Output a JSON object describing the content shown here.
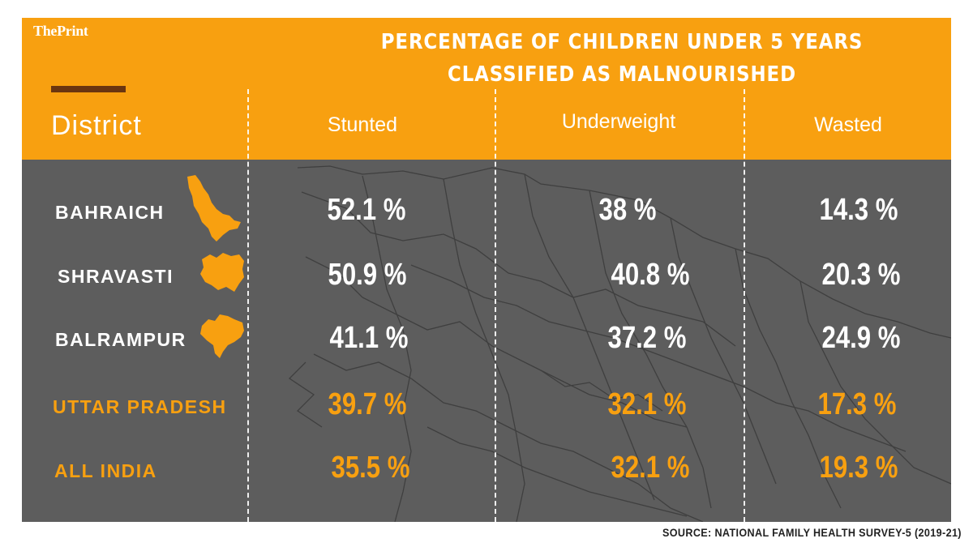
{
  "brand": "ThePrint",
  "colors": {
    "header": "#f8a010",
    "panel": "#5d5d5d",
    "highlight": "#f8a010",
    "text": "#ffffff"
  },
  "chart_data": {
    "type": "table",
    "title_line1": "PERCENTAGE OF CHILDREN UNDER 5 YEARS",
    "title_line2": "CLASSIFIED AS MALNOURISHED",
    "row_header": "District",
    "columns": [
      "Stunted",
      "Underweight",
      "Wasted"
    ],
    "rows": [
      {
        "name": "BAHRAICH",
        "icon": "bahraich-map-icon",
        "highlight": false,
        "values": [
          "52.1 %",
          "38 %",
          "14.3 %"
        ]
      },
      {
        "name": "SHRAVASTI",
        "icon": "shravasti-map-icon",
        "highlight": false,
        "values": [
          "50.9 %",
          "40.8 %",
          "20.3 %"
        ]
      },
      {
        "name": "BALRAMPUR",
        "icon": "balrampur-map-icon",
        "highlight": false,
        "values": [
          "41.1 %",
          "37.2 %",
          "24.9 %"
        ]
      },
      {
        "name": "UTTAR PRADESH",
        "highlight": true,
        "values": [
          "39.7 %",
          "32.1 %",
          "17.3 %"
        ]
      },
      {
        "name": "ALL INDIA",
        "highlight": true,
        "values": [
          "35.5 %",
          "32.1 %",
          "19.3 %"
        ]
      }
    ],
    "source": "SOURCE: NATIONAL FAMILY HEALTH SURVEY-5 (2019-21)"
  }
}
